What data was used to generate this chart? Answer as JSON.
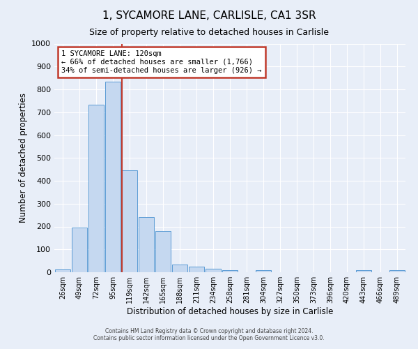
{
  "title": "1, SYCAMORE LANE, CARLISLE, CA1 3SR",
  "subtitle": "Size of property relative to detached houses in Carlisle",
  "xlabel": "Distribution of detached houses by size in Carlisle",
  "ylabel": "Number of detached properties",
  "bar_labels": [
    "26sqm",
    "49sqm",
    "72sqm",
    "95sqm",
    "119sqm",
    "142sqm",
    "165sqm",
    "188sqm",
    "211sqm",
    "234sqm",
    "258sqm",
    "281sqm",
    "304sqm",
    "327sqm",
    "350sqm",
    "373sqm",
    "396sqm",
    "420sqm",
    "443sqm",
    "466sqm",
    "489sqm"
  ],
  "bar_values": [
    13,
    196,
    733,
    833,
    447,
    242,
    179,
    35,
    23,
    15,
    10,
    0,
    8,
    0,
    0,
    0,
    0,
    0,
    8,
    0,
    8
  ],
  "bar_color": "#c5d8f0",
  "bar_edge_color": "#5b9bd5",
  "marker_bar_index": 4,
  "marker_color": "#c0392b",
  "annotation_title": "1 SYCAMORE LANE: 120sqm",
  "annotation_line1": "← 66% of detached houses are smaller (1,766)",
  "annotation_line2": "34% of semi-detached houses are larger (926) →",
  "annotation_box_color": "#c0392b",
  "ylim": [
    0,
    1000
  ],
  "yticks": [
    0,
    100,
    200,
    300,
    400,
    500,
    600,
    700,
    800,
    900,
    1000
  ],
  "footnote1": "Contains HM Land Registry data © Crown copyright and database right 2024.",
  "footnote2": "Contains public sector information licensed under the Open Government Licence v3.0.",
  "bg_color": "#e8eef8",
  "plot_bg_color": "#e8eef8",
  "grid_color": "#ffffff",
  "title_fontsize": 11,
  "subtitle_fontsize": 9,
  "xlabel_fontsize": 8.5,
  "ylabel_fontsize": 8.5
}
